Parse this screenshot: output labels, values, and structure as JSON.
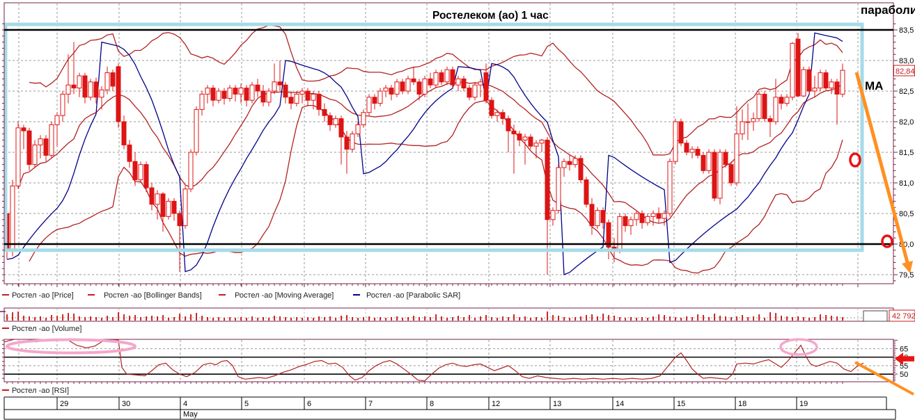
{
  "header": {
    "title": "Ростелеком (ао)   1 час",
    "parabolic_note": "параболик"
  },
  "main_panel": {
    "ma_label": "MA",
    "last_price_label": "82,84",
    "price_axis": {
      "labels": [
        "83,5",
        "83,0",
        "82,5",
        "82,0",
        "81,5",
        "81,0",
        "80,5",
        "80,0",
        "79,5"
      ],
      "values": [
        83.5,
        83.0,
        82.5,
        82.0,
        81.5,
        81.0,
        80.5,
        80.0,
        79.5
      ]
    }
  },
  "legend": {
    "items": [
      {
        "label": "Ростел -ао [Price]",
        "color": "#c41d1d"
      },
      {
        "label": "Ростел -ао [Bollinger Bands]",
        "color": "#c41d1d"
      },
      {
        "label": "Ростел -ао [Moving Average]",
        "color": "#c41d1d"
      },
      {
        "label": "Ростел -ао [Parabolic SAR]",
        "color": "#00008b"
      }
    ]
  },
  "volume_panel": {
    "legend_label": "Ростел -ао [Volume]",
    "badge": "42 792"
  },
  "rsi_panel": {
    "legend_label": "Ростел -ао [RSI]",
    "axis_labels": [
      "65",
      "60",
      "55",
      "50"
    ],
    "axis_values": [
      65,
      60,
      55,
      50
    ],
    "solid_levels": [
      60,
      50
    ],
    "dashed_levels": [
      65,
      55
    ]
  },
  "date_axis": {
    "boundaries": [
      6,
      82,
      171,
      259,
      347,
      437,
      525,
      613,
      702,
      790,
      880,
      968,
      1056,
      1144,
      1273
    ],
    "labels": [
      "",
      "29",
      "30",
      "4",
      "5",
      "6",
      "7",
      "8",
      "12",
      "13",
      "14",
      "15",
      "18",
      "19"
    ],
    "month": {
      "label": "May",
      "start_x": 259,
      "end_x": 1286
    }
  },
  "colors": {
    "candle_red": "#dd1414",
    "indicator_red": "#b22222",
    "sar_blue": "#00008b",
    "grid_gray": "#999999",
    "panel_border": "#7a2048",
    "highlight_cyan": "#a6dbe8",
    "annotation_orange": "#ff9022",
    "annotation_pink": "#f4a7cb",
    "annotation_red": "#e81414",
    "volume_red": "#cc1111"
  },
  "chart_data": {
    "type": "candlestick",
    "instrument": "Ростелеком (ао)",
    "timeframe": "1 час",
    "title": "Ростелеком (ао)   1 час",
    "ylim": [
      79.3,
      83.7
    ],
    "price_ticks": [
      83.5,
      83.0,
      82.5,
      82.0,
      81.5,
      81.0,
      80.5,
      80.0,
      79.5
    ],
    "levels": {
      "resistance": 83.5,
      "support": 80.0
    },
    "highlight_box": {
      "price_top": 83.59,
      "price_bottom": 79.9
    },
    "last_close": 82.84,
    "last_volume_label": "42 792",
    "sessions": [
      "",
      "29",
      "30",
      "4",
      "5",
      "6",
      "7",
      "8",
      "12",
      "13",
      "14",
      "15",
      "18",
      "19"
    ],
    "indicators": {
      "bollinger": {
        "period": 20,
        "stdev": 2
      },
      "moving_average": {
        "period": 13
      },
      "parabolic_sar": {
        "af_step": 0.02,
        "af_max": 0.2
      }
    },
    "candles": [
      [
        80.5,
        80.6,
        79.75,
        79.9
      ],
      [
        79.9,
        81.05,
        79.8,
        80.95
      ],
      [
        80.95,
        82.0,
        80.9,
        81.9
      ],
      [
        81.9,
        81.95,
        81.55,
        81.85
      ],
      [
        81.85,
        81.9,
        81.2,
        81.3
      ],
      [
        81.3,
        81.7,
        81.25,
        81.62
      ],
      [
        81.62,
        81.78,
        81.4,
        81.72
      ],
      [
        81.72,
        81.78,
        81.35,
        81.45
      ],
      [
        81.45,
        82.0,
        81.4,
        81.95
      ],
      [
        81.95,
        82.15,
        81.6,
        82.1
      ],
      [
        82.1,
        82.5,
        82.0,
        82.45
      ],
      [
        82.45,
        83.1,
        82.3,
        82.6
      ],
      [
        82.6,
        83.3,
        82.45,
        82.55
      ],
      [
        82.55,
        82.8,
        82.4,
        82.75
      ],
      [
        82.75,
        82.8,
        82.3,
        82.4
      ],
      [
        82.4,
        82.7,
        82.35,
        82.65
      ],
      [
        82.65,
        82.72,
        82.3,
        82.4
      ],
      [
        82.4,
        82.58,
        82.2,
        82.52
      ],
      [
        82.52,
        82.9,
        82.45,
        82.8
      ],
      [
        82.8,
        82.85,
        82.5,
        82.58
      ],
      [
        82.9,
        82.95,
        81.9,
        82.0
      ],
      [
        82.0,
        82.1,
        81.55,
        81.62
      ],
      [
        81.62,
        81.7,
        81.25,
        81.35
      ],
      [
        81.35,
        81.5,
        80.95,
        81.05
      ],
      [
        81.05,
        81.35,
        81.0,
        81.3
      ],
      [
        81.3,
        81.35,
        80.85,
        80.92
      ],
      [
        80.92,
        81.0,
        80.55,
        80.65
      ],
      [
        80.65,
        80.88,
        80.4,
        80.82
      ],
      [
        80.82,
        80.85,
        80.2,
        80.45
      ],
      [
        80.45,
        80.75,
        80.4,
        80.7
      ],
      [
        80.7,
        80.75,
        80.38,
        80.5
      ],
      [
        80.5,
        80.55,
        79.55,
        80.3
      ],
      [
        80.3,
        80.95,
        80.25,
        80.9
      ],
      [
        80.9,
        81.55,
        80.85,
        81.5
      ],
      [
        81.5,
        82.25,
        81.45,
        82.2
      ],
      [
        82.2,
        82.5,
        82.1,
        82.45
      ],
      [
        82.45,
        82.6,
        82.3,
        82.55
      ],
      [
        82.55,
        82.6,
        82.25,
        82.35
      ],
      [
        82.35,
        82.55,
        82.3,
        82.5
      ],
      [
        82.5,
        82.55,
        82.28,
        82.38
      ],
      [
        82.38,
        82.6,
        82.33,
        82.55
      ],
      [
        82.55,
        82.6,
        82.33,
        82.45
      ],
      [
        82.45,
        82.62,
        82.3,
        82.55
      ],
      [
        82.55,
        82.6,
        82.25,
        82.35
      ],
      [
        82.35,
        82.65,
        82.3,
        82.6
      ],
      [
        82.6,
        82.7,
        82.4,
        82.5
      ],
      [
        82.5,
        82.6,
        82.25,
        82.32
      ],
      [
        82.32,
        82.55,
        82.25,
        82.5
      ],
      [
        82.5,
        82.95,
        82.45,
        82.65
      ],
      [
        82.65,
        83.0,
        82.5,
        82.6
      ],
      [
        82.6,
        82.65,
        82.3,
        82.4
      ],
      [
        82.4,
        82.5,
        82.2,
        82.3
      ],
      [
        82.3,
        82.5,
        82.25,
        82.45
      ],
      [
        82.45,
        82.55,
        82.3,
        82.5
      ],
      [
        82.5,
        82.55,
        82.25,
        82.35
      ],
      [
        82.35,
        82.5,
        82.2,
        82.45
      ],
      [
        82.45,
        82.5,
        82.1,
        82.2
      ],
      [
        82.2,
        82.3,
        82.0,
        82.1
      ],
      [
        82.1,
        82.15,
        81.85,
        81.95
      ],
      [
        81.95,
        82.1,
        81.9,
        82.05
      ],
      [
        82.05,
        82.1,
        81.3,
        81.75
      ],
      [
        81.75,
        81.85,
        81.15,
        81.55
      ],
      [
        81.55,
        81.85,
        81.5,
        81.8
      ],
      [
        81.8,
        82.0,
        81.75,
        81.95
      ],
      [
        81.95,
        82.2,
        81.9,
        82.15
      ],
      [
        82.15,
        82.45,
        82.1,
        82.4
      ],
      [
        82.4,
        82.45,
        82.2,
        82.3
      ],
      [
        82.3,
        82.55,
        82.25,
        82.5
      ],
      [
        82.5,
        82.6,
        82.4,
        82.55
      ],
      [
        82.55,
        82.6,
        82.35,
        82.45
      ],
      [
        82.45,
        82.7,
        82.4,
        82.65
      ],
      [
        82.65,
        82.7,
        82.45,
        82.5
      ],
      [
        82.5,
        82.75,
        82.45,
        82.7
      ],
      [
        82.7,
        82.9,
        82.6,
        82.65
      ],
      [
        82.65,
        82.7,
        82.35,
        82.45
      ],
      [
        82.45,
        82.75,
        82.4,
        82.7
      ],
      [
        82.7,
        82.8,
        82.55,
        82.6
      ],
      [
        82.6,
        82.85,
        82.55,
        82.8
      ],
      [
        82.8,
        82.85,
        82.6,
        82.65
      ],
      [
        82.65,
        82.9,
        82.6,
        82.85
      ],
      [
        82.85,
        82.9,
        82.55,
        82.6
      ],
      [
        82.6,
        82.75,
        82.5,
        82.7
      ],
      [
        82.7,
        82.75,
        82.5,
        82.55
      ],
      [
        82.55,
        82.6,
        82.35,
        82.4
      ],
      [
        82.4,
        82.65,
        82.35,
        82.6
      ],
      [
        82.6,
        82.7,
        82.4,
        82.65
      ],
      [
        82.8,
        82.95,
        82.3,
        82.35
      ],
      [
        82.35,
        82.4,
        82.05,
        82.1
      ],
      [
        82.1,
        82.2,
        82.0,
        82.15
      ],
      [
        82.15,
        82.2,
        81.95,
        82.05
      ],
      [
        82.05,
        82.1,
        81.5,
        81.85
      ],
      [
        81.85,
        81.95,
        81.15,
        81.8
      ],
      [
        81.8,
        81.85,
        81.6,
        81.7
      ],
      [
        81.7,
        81.8,
        81.3,
        81.75
      ],
      [
        81.75,
        81.8,
        81.55,
        81.6
      ],
      [
        81.6,
        81.7,
        81.4,
        81.65
      ],
      [
        81.65,
        81.72,
        81.5,
        81.7
      ],
      [
        81.7,
        81.75,
        79.5,
        80.4
      ],
      [
        80.4,
        80.6,
        80.3,
        80.55
      ],
      [
        80.55,
        81.3,
        80.5,
        81.25
      ],
      [
        81.25,
        81.4,
        81.1,
        81.35
      ],
      [
        81.35,
        81.45,
        81.2,
        81.3
      ],
      [
        81.3,
        81.45,
        81.25,
        81.4
      ],
      [
        81.4,
        81.45,
        81.0,
        81.05
      ],
      [
        81.05,
        81.1,
        80.6,
        80.65
      ],
      [
        80.65,
        80.75,
        80.15,
        80.3
      ],
      [
        80.3,
        80.6,
        80.25,
        80.55
      ],
      [
        80.55,
        80.6,
        80.25,
        80.35
      ],
      [
        80.35,
        80.4,
        79.75,
        79.95
      ],
      [
        79.95,
        80.1,
        79.7,
        79.9
      ],
      [
        79.9,
        80.5,
        79.85,
        80.45
      ],
      [
        80.45,
        80.5,
        80.2,
        80.3
      ],
      [
        80.3,
        80.45,
        80.15,
        80.4
      ],
      [
        80.4,
        80.55,
        80.3,
        80.5
      ],
      [
        80.5,
        80.55,
        80.25,
        80.35
      ],
      [
        80.35,
        80.5,
        80.3,
        80.45
      ],
      [
        80.45,
        80.55,
        80.3,
        80.5
      ],
      [
        80.5,
        80.6,
        80.35,
        80.42
      ],
      [
        80.42,
        80.55,
        80.3,
        80.5
      ],
      [
        80.5,
        81.4,
        80.45,
        81.35
      ],
      [
        81.35,
        82.05,
        81.3,
        82.0
      ],
      [
        82.0,
        82.05,
        81.6,
        81.65
      ],
      [
        81.65,
        81.7,
        81.45,
        81.5
      ],
      [
        81.5,
        81.6,
        81.4,
        81.55
      ],
      [
        81.55,
        81.6,
        81.4,
        81.45
      ],
      [
        81.45,
        81.5,
        81.15,
        81.2
      ],
      [
        81.2,
        81.55,
        81.15,
        81.5
      ],
      [
        81.5,
        81.55,
        80.7,
        80.75
      ],
      [
        80.75,
        81.55,
        80.65,
        81.5
      ],
      [
        81.5,
        81.55,
        81.25,
        81.3
      ],
      [
        81.3,
        81.35,
        80.95,
        81.0
      ],
      [
        81.0,
        82.25,
        80.95,
        81.8
      ],
      [
        81.8,
        82.2,
        81.7,
        82.0
      ],
      [
        82.0,
        82.3,
        81.7,
        82.0
      ],
      [
        82.0,
        82.15,
        81.85,
        82.05
      ],
      [
        82.05,
        82.5,
        82.0,
        82.45
      ],
      [
        82.45,
        82.5,
        82.0,
        82.05
      ],
      [
        82.05,
        82.1,
        81.75,
        82.0
      ],
      [
        82.0,
        82.7,
        81.95,
        82.4
      ],
      [
        82.4,
        82.45,
        82.2,
        82.3
      ],
      [
        82.3,
        82.45,
        82.25,
        82.4
      ],
      [
        82.4,
        83.3,
        82.35,
        83.28
      ],
      [
        83.35,
        83.45,
        82.4,
        82.42
      ],
      [
        82.42,
        82.9,
        82.4,
        82.85
      ],
      [
        82.85,
        82.9,
        82.45,
        82.5
      ],
      [
        82.5,
        82.75,
        82.4,
        82.55
      ],
      [
        82.55,
        82.85,
        82.5,
        82.8
      ],
      [
        82.8,
        82.85,
        82.5,
        82.55
      ],
      [
        82.55,
        82.7,
        82.45,
        82.65
      ],
      [
        82.65,
        82.7,
        81.95,
        82.45
      ],
      [
        82.45,
        82.95,
        82.4,
        82.84
      ]
    ],
    "volumes_rel": [
      9,
      12,
      13,
      7,
      6,
      5,
      6,
      4,
      8,
      7,
      9,
      11,
      10,
      6,
      5,
      6,
      5,
      4,
      7,
      5,
      12,
      9,
      7,
      8,
      5,
      6,
      7,
      6,
      8,
      4,
      5,
      10,
      6,
      9,
      11,
      7,
      5,
      4,
      5,
      4,
      5,
      4,
      5,
      4,
      6,
      4,
      5,
      4,
      7,
      6,
      5,
      4,
      5,
      4,
      5,
      4,
      6,
      5,
      6,
      4,
      7,
      8,
      5,
      4,
      5,
      6,
      4,
      5,
      4,
      5,
      6,
      4,
      5,
      7,
      5,
      6,
      5,
      9,
      6,
      4,
      5,
      7,
      5,
      8,
      4,
      6,
      8,
      5,
      4,
      6,
      5,
      9,
      5,
      6,
      4,
      5,
      4,
      13,
      8,
      7,
      5,
      4,
      5,
      6,
      8,
      9,
      6,
      10,
      8,
      7,
      5,
      4,
      5,
      4,
      5,
      4,
      6,
      9,
      8,
      6,
      5,
      4,
      6,
      5,
      9,
      8,
      5,
      10,
      7,
      6,
      5,
      6,
      8,
      5,
      6,
      9,
      4,
      12,
      11,
      7,
      6,
      5,
      6,
      5,
      4,
      5,
      9,
      8,
      7,
      6,
      5
    ],
    "rsi_points": [
      6,
      69,
      20,
      70.5,
      38,
      71,
      52,
      69,
      66,
      70.5,
      82,
      71,
      96,
      70.5,
      110,
      67,
      124,
      65.5,
      136,
      66.5,
      148,
      69.5,
      162,
      70.5,
      170,
      70,
      175,
      54,
      182,
      50,
      195,
      49.5,
      208,
      49,
      218,
      52,
      228,
      55.5,
      238,
      56.5,
      248,
      52.5,
      258,
      50,
      268,
      48.5,
      280,
      51,
      292,
      55.5,
      302,
      56.5,
      310,
      55.5,
      318,
      57.5,
      326,
      58,
      334,
      55,
      342,
      48.5,
      352,
      47,
      362,
      47.5,
      372,
      48,
      382,
      47.5,
      394,
      49,
      406,
      51,
      418,
      52.5,
      430,
      54.5,
      442,
      56,
      452,
      57.5,
      462,
      58,
      472,
      56,
      482,
      56.5,
      492,
      54,
      502,
      49,
      510,
      46.5,
      520,
      48,
      530,
      52,
      540,
      55,
      550,
      57,
      560,
      58,
      570,
      56,
      580,
      53,
      590,
      50,
      600,
      46.5,
      610,
      46,
      620,
      50,
      630,
      53.5,
      640,
      55.5,
      650,
      56.5,
      660,
      55,
      670,
      54.5,
      680,
      55.5,
      690,
      56,
      700,
      54,
      710,
      52,
      720,
      53.5,
      730,
      55,
      740,
      52,
      750,
      48.5,
      760,
      47.5,
      772,
      49,
      784,
      48,
      796,
      47.5,
      810,
      47,
      824,
      47.5,
      838,
      47,
      852,
      47.5,
      866,
      47,
      880,
      47.5,
      894,
      47,
      908,
      47.5,
      922,
      47,
      936,
      47.5,
      948,
      49,
      960,
      55,
      970,
      60,
      978,
      62.5,
      986,
      58,
      994,
      53,
      1002,
      50,
      1010,
      47.5,
      1020,
      48,
      1032,
      47.5,
      1044,
      47,
      1052,
      50,
      1058,
      56,
      1070,
      56.5,
      1082,
      56,
      1094,
      57.5,
      1104,
      58.5,
      1114,
      56,
      1122,
      54,
      1132,
      58,
      1142,
      63,
      1150,
      67,
      1158,
      60,
      1164,
      56,
      1172,
      54.5,
      1182,
      56,
      1192,
      57.5,
      1202,
      56.5,
      1212,
      53,
      1222,
      51.5,
      1232,
      55,
      1240,
      56.5
    ]
  }
}
